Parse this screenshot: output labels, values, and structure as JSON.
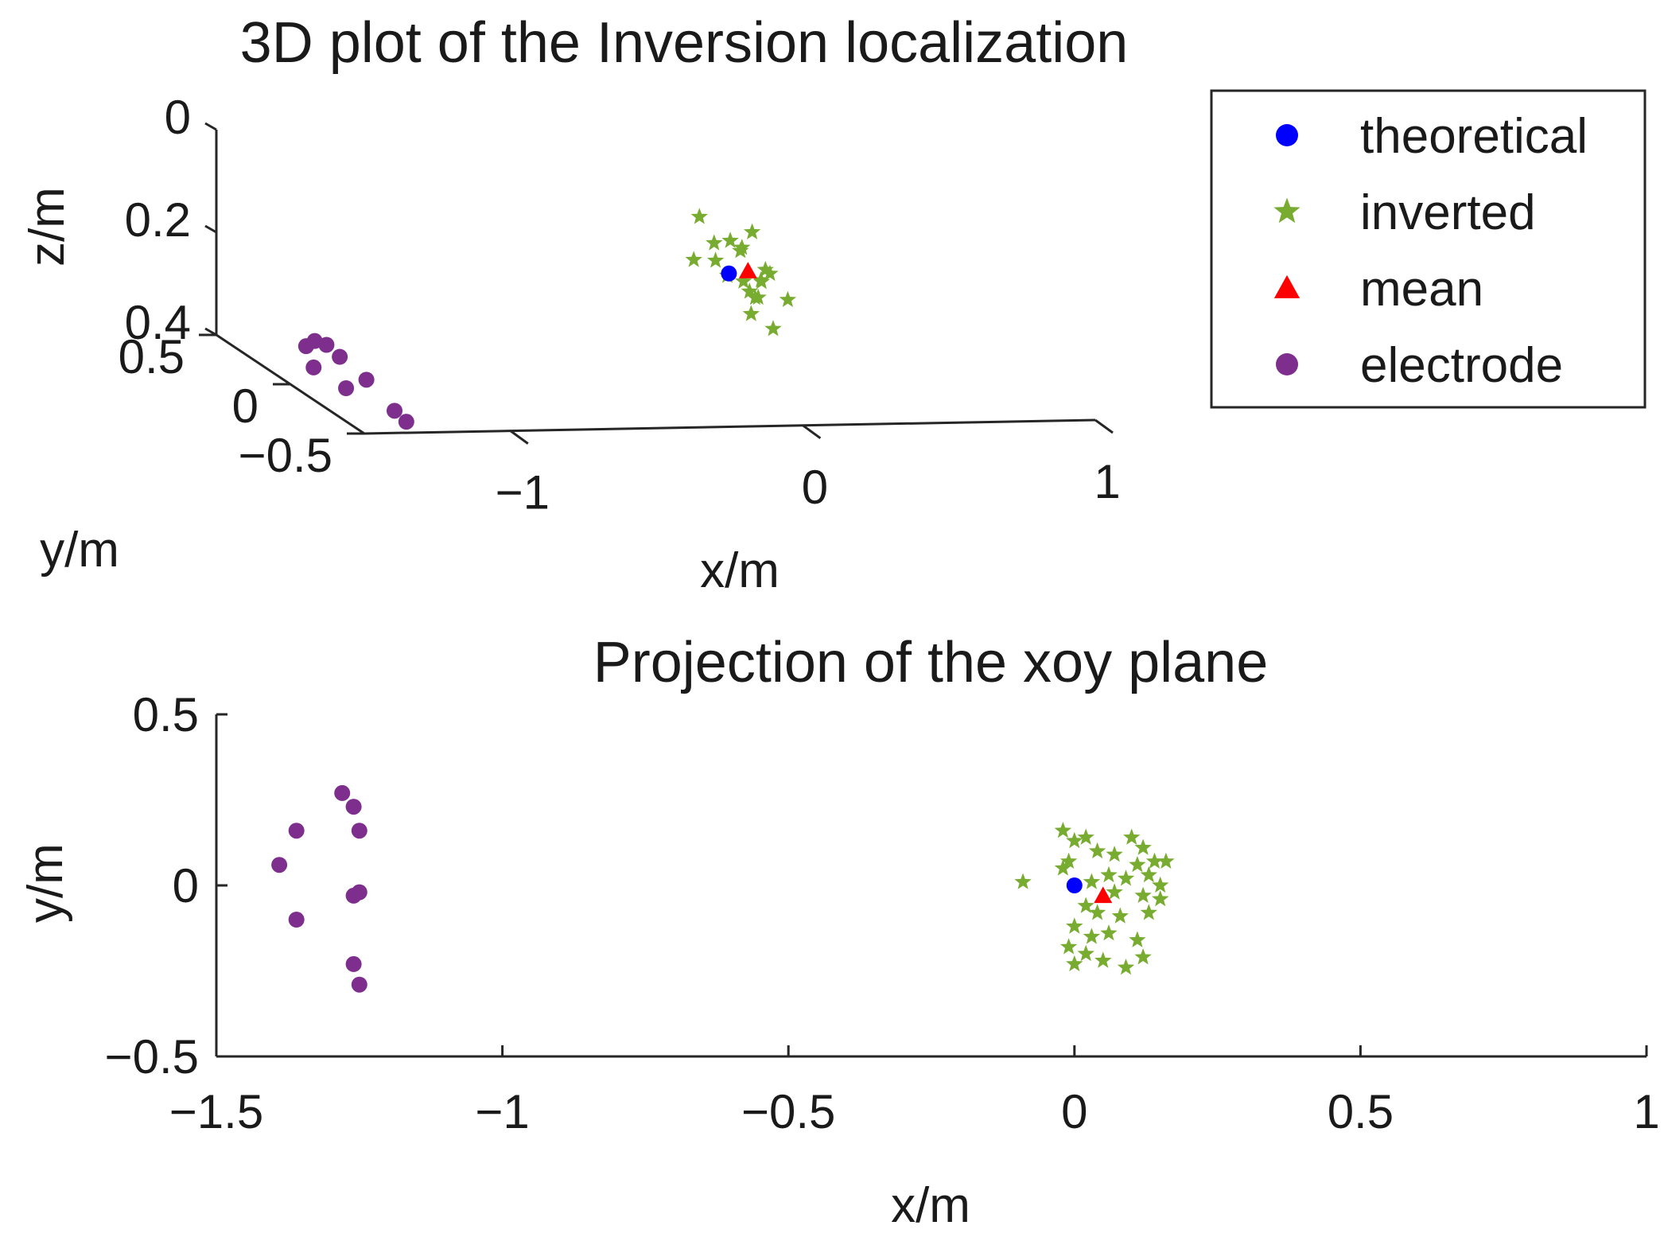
{
  "colors": {
    "theoretical": "#0000ff",
    "inverted": "#77ac30",
    "mean": "#ff0000",
    "electrode": "#7e2f8e",
    "axis": "#262626",
    "text": "#1a1a1a"
  },
  "chart_data": [
    {
      "type": "scatter",
      "projection": "3d",
      "title": "3D plot of the Inversion localization",
      "xlabel": "x/m",
      "ylabel": "y/m",
      "zlabel": "z/m",
      "xlim": [
        -1.5,
        1
      ],
      "ylim": [
        -0.5,
        0.5
      ],
      "zlim": [
        0,
        0.4
      ],
      "z_reversed": true,
      "xticks": [
        {
          "v": -1,
          "label": "−1"
        },
        {
          "v": 0,
          "label": "0"
        },
        {
          "v": 1,
          "label": "1"
        }
      ],
      "yticks": [
        {
          "v": -0.5,
          "label": "−0.5"
        },
        {
          "v": 0,
          "label": "0"
        },
        {
          "v": 0.5,
          "label": "0.5"
        }
      ],
      "zticks": [
        {
          "v": 0,
          "label": "0"
        },
        {
          "v": 0.2,
          "label": "0.2"
        },
        {
          "v": 0.4,
          "label": "0.4"
        }
      ],
      "legend": {
        "location": "top-right",
        "entries": [
          {
            "key": "theoretical",
            "label": "theoretical",
            "marker": "circle"
          },
          {
            "key": "inverted",
            "label": "inverted",
            "marker": "star"
          },
          {
            "key": "mean",
            "label": "mean",
            "marker": "triangle"
          },
          {
            "key": "electrode",
            "label": "electrode",
            "marker": "circle"
          }
        ]
      },
      "series": [
        {
          "name": "theoretical",
          "marker": "circle",
          "points": [
            {
              "x": 0,
              "y": 0,
              "z": 0.2
            }
          ]
        },
        {
          "name": "inverted",
          "marker": "star",
          "points": [
            {
              "x": -0.1,
              "y": 0.04,
              "z": 0.18
            },
            {
              "x": -0.02,
              "y": 0.16,
              "z": 0.12
            },
            {
              "x": 0.0,
              "y": 0.1,
              "z": 0.16
            },
            {
              "x": 0.02,
              "y": 0.13,
              "z": 0.2
            },
            {
              "x": 0.04,
              "y": 0.07,
              "z": 0.15
            },
            {
              "x": 0.06,
              "y": 0.02,
              "z": 0.22
            },
            {
              "x": 0.08,
              "y": -0.04,
              "z": 0.24
            },
            {
              "x": 0.1,
              "y": 0.12,
              "z": 0.18
            },
            {
              "x": 0.12,
              "y": 0.06,
              "z": 0.26
            },
            {
              "x": 0.14,
              "y": 0.03,
              "z": 0.2
            },
            {
              "x": 0.15,
              "y": 0.08,
              "z": 0.23
            },
            {
              "x": 0.03,
              "y": -0.08,
              "z": 0.22
            },
            {
              "x": 0.0,
              "y": -0.15,
              "z": 0.25
            },
            {
              "x": 0.05,
              "y": -0.2,
              "z": 0.27
            },
            {
              "x": 0.09,
              "y": -0.22,
              "z": 0.21
            },
            {
              "x": -0.01,
              "y": -0.24,
              "z": 0.17
            },
            {
              "x": 0.11,
              "y": -0.06,
              "z": 0.19
            },
            {
              "x": 0.13,
              "y": 0.1,
              "z": 0.14
            },
            {
              "x": 0.07,
              "y": 0.05,
              "z": 0.16
            },
            {
              "x": 0.01,
              "y": 0.03,
              "z": 0.21
            }
          ]
        },
        {
          "name": "mean",
          "marker": "triangle",
          "points": [
            {
              "x": 0.05,
              "y": -0.03,
              "z": 0.19
            }
          ]
        },
        {
          "name": "electrode",
          "marker": "circle",
          "points": [
            {
              "x": -1.36,
              "y": 0.17,
              "z": 0.36
            },
            {
              "x": -1.28,
              "y": 0.27,
              "z": 0.37
            },
            {
              "x": -1.26,
              "y": 0.23,
              "z": 0.37
            },
            {
              "x": -1.25,
              "y": 0.16,
              "z": 0.38
            },
            {
              "x": -1.39,
              "y": 0.06,
              "z": 0.38
            },
            {
              "x": -1.25,
              "y": -0.02,
              "z": 0.39
            },
            {
              "x": -1.36,
              "y": -0.1,
              "z": 0.39
            },
            {
              "x": -1.26,
              "y": -0.23,
              "z": 0.41
            },
            {
              "x": -1.25,
              "y": -0.29,
              "z": 0.42
            }
          ]
        }
      ]
    },
    {
      "type": "scatter",
      "projection": "2d",
      "title": "Projection of the xoy plane",
      "xlabel": "x/m",
      "ylabel": "y/m",
      "xlim": [
        -1.5,
        1
      ],
      "ylim": [
        -0.5,
        0.5
      ],
      "xticks": [
        {
          "v": -1.5,
          "label": "−1.5"
        },
        {
          "v": -1,
          "label": "−1"
        },
        {
          "v": -0.5,
          "label": "−0.5"
        },
        {
          "v": 0,
          "label": "0"
        },
        {
          "v": 0.5,
          "label": "0.5"
        },
        {
          "v": 1,
          "label": "1"
        }
      ],
      "yticks": [
        {
          "v": -0.5,
          "label": "−0.5"
        },
        {
          "v": 0,
          "label": "0"
        },
        {
          "v": 0.5,
          "label": "0.5"
        }
      ],
      "series": [
        {
          "name": "theoretical",
          "marker": "circle",
          "points": [
            {
              "x": 0,
              "y": 0
            }
          ]
        },
        {
          "name": "inverted",
          "marker": "star",
          "points": [
            {
              "x": -0.09,
              "y": 0.01
            },
            {
              "x": -0.02,
              "y": 0.16
            },
            {
              "x": 0.0,
              "y": 0.13
            },
            {
              "x": 0.02,
              "y": 0.14
            },
            {
              "x": -0.01,
              "y": 0.07
            },
            {
              "x": 0.04,
              "y": 0.1
            },
            {
              "x": 0.06,
              "y": 0.03
            },
            {
              "x": 0.03,
              "y": 0.01
            },
            {
              "x": 0.07,
              "y": -0.02
            },
            {
              "x": 0.1,
              "y": 0.14
            },
            {
              "x": 0.12,
              "y": 0.11
            },
            {
              "x": 0.14,
              "y": 0.07
            },
            {
              "x": 0.16,
              "y": 0.07
            },
            {
              "x": 0.11,
              "y": 0.06
            },
            {
              "x": 0.13,
              "y": 0.03
            },
            {
              "x": 0.09,
              "y": 0.02
            },
            {
              "x": 0.15,
              "y": 0.0
            },
            {
              "x": 0.12,
              "y": -0.03
            },
            {
              "x": 0.02,
              "y": -0.06
            },
            {
              "x": 0.04,
              "y": -0.08
            },
            {
              "x": 0.08,
              "y": -0.09
            },
            {
              "x": 0.13,
              "y": -0.08
            },
            {
              "x": 0.0,
              "y": -0.12
            },
            {
              "x": 0.03,
              "y": -0.15
            },
            {
              "x": 0.06,
              "y": -0.14
            },
            {
              "x": 0.11,
              "y": -0.16
            },
            {
              "x": -0.01,
              "y": -0.18
            },
            {
              "x": 0.02,
              "y": -0.2
            },
            {
              "x": 0.05,
              "y": -0.22
            },
            {
              "x": 0.09,
              "y": -0.24
            },
            {
              "x": 0.0,
              "y": -0.23
            },
            {
              "x": 0.12,
              "y": -0.21
            },
            {
              "x": 0.15,
              "y": -0.04
            },
            {
              "x": -0.02,
              "y": 0.05
            },
            {
              "x": 0.07,
              "y": 0.09
            }
          ]
        },
        {
          "name": "mean",
          "marker": "triangle",
          "points": [
            {
              "x": 0.05,
              "y": -0.03
            }
          ]
        },
        {
          "name": "electrode",
          "marker": "circle",
          "points": [
            {
              "x": -1.28,
              "y": 0.27
            },
            {
              "x": -1.26,
              "y": 0.23
            },
            {
              "x": -1.36,
              "y": 0.16
            },
            {
              "x": -1.25,
              "y": 0.16
            },
            {
              "x": -1.39,
              "y": 0.06
            },
            {
              "x": -1.25,
              "y": -0.02
            },
            {
              "x": -1.26,
              "y": -0.03
            },
            {
              "x": -1.36,
              "y": -0.1
            },
            {
              "x": -1.26,
              "y": -0.23
            },
            {
              "x": -1.25,
              "y": -0.29
            }
          ]
        }
      ]
    }
  ]
}
